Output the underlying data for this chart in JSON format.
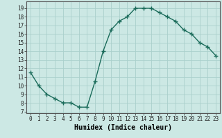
{
  "x": [
    0,
    1,
    2,
    3,
    4,
    5,
    6,
    7,
    8,
    9,
    10,
    11,
    12,
    13,
    14,
    15,
    16,
    17,
    18,
    19,
    20,
    21,
    22,
    23
  ],
  "y": [
    11.5,
    10.0,
    9.0,
    8.5,
    8.0,
    8.0,
    7.5,
    7.5,
    10.5,
    14.0,
    16.5,
    17.5,
    18.0,
    19.0,
    19.0,
    19.0,
    18.5,
    18.0,
    17.5,
    16.5,
    16.0,
    15.0,
    14.5,
    13.5
  ],
  "line_color": "#1a6b5a",
  "marker": "+",
  "bg_color": "#cce8e4",
  "grid_color": "#aad0cc",
  "xlabel": "Humidex (Indice chaleur)",
  "ylabel_ticks": [
    7,
    8,
    9,
    10,
    11,
    12,
    13,
    14,
    15,
    16,
    17,
    18,
    19
  ],
  "ylim": [
    6.8,
    19.8
  ],
  "xlim": [
    -0.5,
    23.5
  ],
  "tick_fontsize": 5.5,
  "xlabel_fontsize": 7.0
}
